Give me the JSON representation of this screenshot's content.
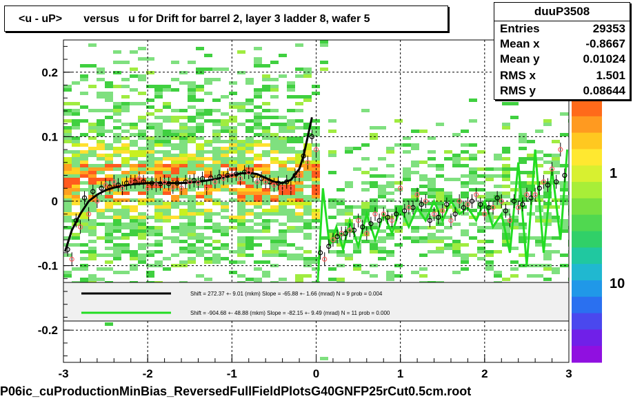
{
  "title": "<u - uP>       versus   u for Drift for barrel 2, layer 3 ladder 8, wafer 5",
  "stats": {
    "name": "duuP3508",
    "rows": [
      {
        "label": "Entries",
        "value": "29353"
      },
      {
        "label": "Mean x",
        "value": "-0.8667"
      },
      {
        "label": "Mean y",
        "value": "0.01024"
      },
      {
        "label": "RMS x",
        "value": "1.501"
      },
      {
        "label": "RMS y",
        "value": "0.08644"
      }
    ]
  },
  "footer": "P06ic_cuProductionMinBias_ReversedFullFieldPlotsG40GNFP25rCut0.5cm.root",
  "colors": {
    "fit1": "#000000",
    "fit2": "#22dd22",
    "points1": "#000000",
    "points2": "#ff6060"
  },
  "chart_data": {
    "type": "scatter",
    "xlim": [
      -3,
      3
    ],
    "ylim": [
      -0.25,
      0.25
    ],
    "x_ticks": [
      -3,
      -2,
      -1,
      0,
      1,
      2,
      3
    ],
    "x_tick_labels": [
      "-3",
      "-2",
      "-1",
      "0",
      "1",
      "2",
      "3"
    ],
    "y_ticks": [
      -0.2,
      -0.1,
      0,
      0.1,
      0.2
    ],
    "y_tick_labels": [
      "-0.2",
      "-0.1",
      "0",
      "0.1",
      "0.2"
    ],
    "grid": true,
    "z_scale_labels": [
      "10",
      "1",
      "10"
    ],
    "legend": [
      {
        "text": "Shift =   272.37 +- 9.01 (mkm) Slope =   -65.88 +- 1.66 (mrad)  N = 9 prob = 0.004",
        "color": "#000000"
      },
      {
        "text": "Shift =   -904.68 +- 48.88 (mkm) Slope =   -82.15 +- 9.49 (mrad)  N = 11 prob = 0.000",
        "color": "#22dd22"
      }
    ],
    "series": [
      {
        "marker": "profile-black",
        "x": [
          -2.95,
          -2.85,
          -2.75,
          -2.65,
          -2.55,
          -2.45,
          -2.35,
          -2.25,
          -2.15,
          -2.05,
          -1.95,
          -1.85,
          -1.75,
          -1.65,
          -1.55,
          -1.45,
          -1.35,
          -1.25,
          -1.15,
          -1.05,
          -0.95,
          -0.85,
          -0.75,
          -0.65,
          -0.55,
          -0.45,
          -0.35,
          -0.25,
          -0.15,
          -0.05,
          0.05,
          0.15,
          0.25,
          0.35,
          0.45,
          0.55,
          0.65,
          0.75,
          0.85,
          0.95,
          1.05,
          1.15,
          1.25,
          1.35,
          1.45,
          1.55,
          1.65,
          1.75,
          1.85,
          1.95,
          2.05,
          2.15,
          2.25,
          2.35,
          2.45,
          2.55,
          2.65,
          2.75,
          2.85,
          2.95
        ],
        "y": [
          -0.075,
          -0.03,
          0.005,
          0.015,
          0.02,
          0.022,
          0.025,
          0.028,
          0.03,
          0.03,
          0.028,
          0.027,
          0.027,
          0.028,
          0.03,
          0.032,
          0.035,
          0.036,
          0.038,
          0.04,
          0.042,
          0.045,
          0.04,
          0.035,
          0.03,
          0.028,
          0.03,
          0.04,
          0.07,
          0.1,
          -0.08,
          -0.07,
          -0.055,
          -0.05,
          -0.045,
          -0.04,
          -0.035,
          -0.03,
          -0.025,
          -0.02,
          -0.015,
          -0.01,
          -0.005,
          -0.03,
          -0.025,
          -0.005,
          -0.02,
          -0.01,
          0,
          -0.005,
          -0.01,
          0.005,
          -0.015,
          0,
          -0.005,
          0.005,
          0.02,
          0.025,
          0.03,
          0.04
        ]
      },
      {
        "marker": "profile-red",
        "x": [
          -2.9,
          -2.8,
          -2.7,
          -2.6,
          -2.5,
          -2.4,
          -2.3,
          -2.2,
          -2.1,
          -2.0,
          -1.9,
          -1.8,
          -1.7,
          -1.6,
          -1.5,
          -1.4,
          -1.3,
          -1.2,
          -1.1,
          -1.0,
          -0.9,
          -0.8,
          -0.7,
          -0.6,
          -0.5,
          -0.4,
          -0.3,
          -0.2,
          -0.1,
          0.0,
          0.1,
          0.2,
          0.3,
          0.4,
          0.5,
          0.6,
          0.7,
          0.8,
          0.9,
          1.0,
          1.1,
          1.2,
          1.3,
          1.4,
          1.5,
          1.6,
          1.7,
          1.8,
          1.9,
          2.0,
          2.1,
          2.2,
          2.3,
          2.4,
          2.5,
          2.6,
          2.7,
          2.8,
          2.9
        ],
        "y": [
          -0.09,
          -0.04,
          -0.02,
          0.0,
          0.025,
          0.03,
          0.02,
          0.03,
          0.035,
          0.02,
          0.025,
          0.03,
          0.022,
          0.02,
          0.03,
          0.028,
          0.02,
          0.03,
          0.035,
          0.04,
          0.035,
          0.045,
          0.03,
          0.03,
          0.025,
          0.02,
          0.02,
          0.04,
          0.06,
          0.08,
          -0.09,
          -0.06,
          -0.05,
          -0.045,
          -0.03,
          -0.05,
          -0.02,
          -0.02,
          -0.03,
          0.02,
          -0.01,
          0.01,
          0.0,
          -0.02,
          -0.015,
          -0.03,
          0.0,
          -0.005,
          0.01,
          -0.02,
          -0.01,
          0.0,
          -0.03,
          -0.01,
          0.01,
          0.01,
          0.03,
          0.05,
          0.08
        ]
      }
    ],
    "fits": [
      {
        "color": "#000000",
        "x": [
          -2.98,
          -2.9,
          -2.8,
          -2.7,
          -2.6,
          -2.5,
          -2.4,
          -2.2,
          -2.0,
          -1.8,
          -1.6,
          -1.4,
          -1.2,
          -1.0,
          -0.9,
          -0.8,
          -0.7,
          -0.6,
          -0.5,
          -0.4,
          -0.3,
          -0.2,
          -0.15,
          -0.1,
          -0.05
        ],
        "y": [
          -0.078,
          -0.045,
          -0.02,
          0.0,
          0.01,
          0.017,
          0.021,
          0.026,
          0.028,
          0.028,
          0.028,
          0.03,
          0.034,
          0.04,
          0.043,
          0.044,
          0.042,
          0.036,
          0.03,
          0.028,
          0.033,
          0.05,
          0.07,
          0.1,
          0.13
        ]
      },
      {
        "color": "#22dd22",
        "x": [
          0.0,
          0.08,
          0.16,
          0.24,
          0.32,
          0.4,
          0.5,
          0.6,
          0.7,
          0.8,
          0.9,
          1.0,
          1.1,
          1.2,
          1.3,
          1.4,
          1.5,
          1.6,
          1.7,
          1.8,
          1.9,
          2.0,
          2.1,
          2.2,
          2.3,
          2.4,
          2.5,
          2.6,
          2.7,
          2.8,
          2.9,
          2.98
        ],
        "y": [
          -0.17,
          0.02,
          -0.07,
          -0.04,
          -0.075,
          -0.03,
          -0.07,
          -0.02,
          -0.06,
          -0.02,
          -0.05,
          -0.01,
          -0.04,
          -0.01,
          -0.03,
          0.0,
          -0.03,
          0.0,
          -0.02,
          -0.01,
          -0.03,
          0.0,
          -0.04,
          -0.02,
          -0.08,
          0.06,
          -0.1,
          0.08,
          -0.08,
          0.05,
          -0.06,
          0.08
        ]
      }
    ]
  }
}
